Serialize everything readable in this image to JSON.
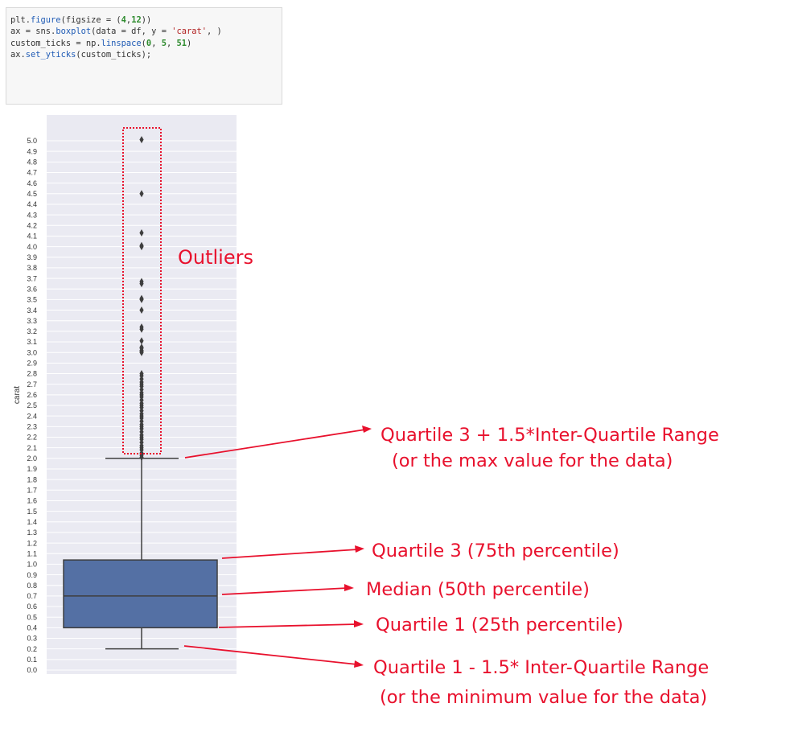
{
  "code": {
    "lines": [
      [
        {
          "t": "plt."
        },
        {
          "t": "figure",
          "c": "k"
        },
        {
          "t": "(figsize = ("
        },
        {
          "t": "4",
          "c": "n"
        },
        {
          "t": ","
        },
        {
          "t": "12",
          "c": "n"
        },
        {
          "t": "))"
        }
      ],
      [
        {
          "t": "ax = sns."
        },
        {
          "t": "boxplot",
          "c": "k"
        },
        {
          "t": "(data = df, y = "
        },
        {
          "t": "'carat'",
          "c": "s"
        },
        {
          "t": ", )"
        }
      ],
      [
        {
          "t": "custom_ticks = np."
        },
        {
          "t": "linspace",
          "c": "k"
        },
        {
          "t": "("
        },
        {
          "t": "0",
          "c": "n"
        },
        {
          "t": ", "
        },
        {
          "t": "5",
          "c": "n"
        },
        {
          "t": ", "
        },
        {
          "t": "51",
          "c": "n"
        },
        {
          "t": ")"
        }
      ],
      [
        {
          "t": "ax."
        },
        {
          "t": "set_yticks",
          "c": "k"
        },
        {
          "t": "(custom_ticks);"
        }
      ]
    ]
  },
  "chart_data": {
    "type": "box",
    "ylabel": "carat",
    "ylim": [
      0.0,
      5.0
    ],
    "yticks": [
      0.0,
      0.1,
      0.2,
      0.3,
      0.4,
      0.5,
      0.6,
      0.7,
      0.8,
      0.9,
      1.0,
      1.1,
      1.2,
      1.3,
      1.4,
      1.5,
      1.6,
      1.7,
      1.8,
      1.9,
      2.0,
      2.1,
      2.2,
      2.3,
      2.4,
      2.5,
      2.6,
      2.7,
      2.8,
      2.9,
      3.0,
      3.1,
      3.2,
      3.3,
      3.4,
      3.5,
      3.6,
      3.7,
      3.8,
      3.9,
      4.0,
      4.1,
      4.2,
      4.3,
      4.4,
      4.5,
      4.6,
      4.7,
      4.8,
      4.9,
      5.0
    ],
    "box": {
      "whisker_low": 0.2,
      "q1": 0.4,
      "median": 0.7,
      "q3": 1.04,
      "whisker_high": 2.0
    },
    "outliers": [
      2.01,
      2.03,
      2.05,
      2.08,
      2.1,
      2.12,
      2.15,
      2.18,
      2.2,
      2.22,
      2.25,
      2.28,
      2.3,
      2.32,
      2.35,
      2.38,
      2.4,
      2.42,
      2.45,
      2.48,
      2.5,
      2.52,
      2.55,
      2.58,
      2.6,
      2.62,
      2.65,
      2.68,
      2.7,
      2.72,
      2.75,
      2.78,
      2.8,
      3.0,
      3.01,
      3.02,
      3.04,
      3.05,
      3.11,
      3.22,
      3.24,
      3.4,
      3.5,
      3.51,
      3.65,
      3.67,
      4.0,
      4.01,
      4.13,
      4.5,
      5.01
    ],
    "grid": true,
    "colors": {
      "box": "#5470a4",
      "background": "#eaeaf2",
      "annotation": "#e8112d"
    },
    "annotations": {
      "outliers": "Outliers",
      "upper_whisker_1": "Quartile 3 + 1.5*Inter-Quartile Range",
      "upper_whisker_2": "(or the max value for the data)",
      "q3": "Quartile 3 (75th percentile)",
      "median": "Median (50th percentile)",
      "q1": "Quartile 1 (25th percentile)",
      "lower_whisker_1": "Quartile 1 - 1.5* Inter-Quartile Range",
      "lower_whisker_2": "(or the minimum value for the data)"
    }
  }
}
